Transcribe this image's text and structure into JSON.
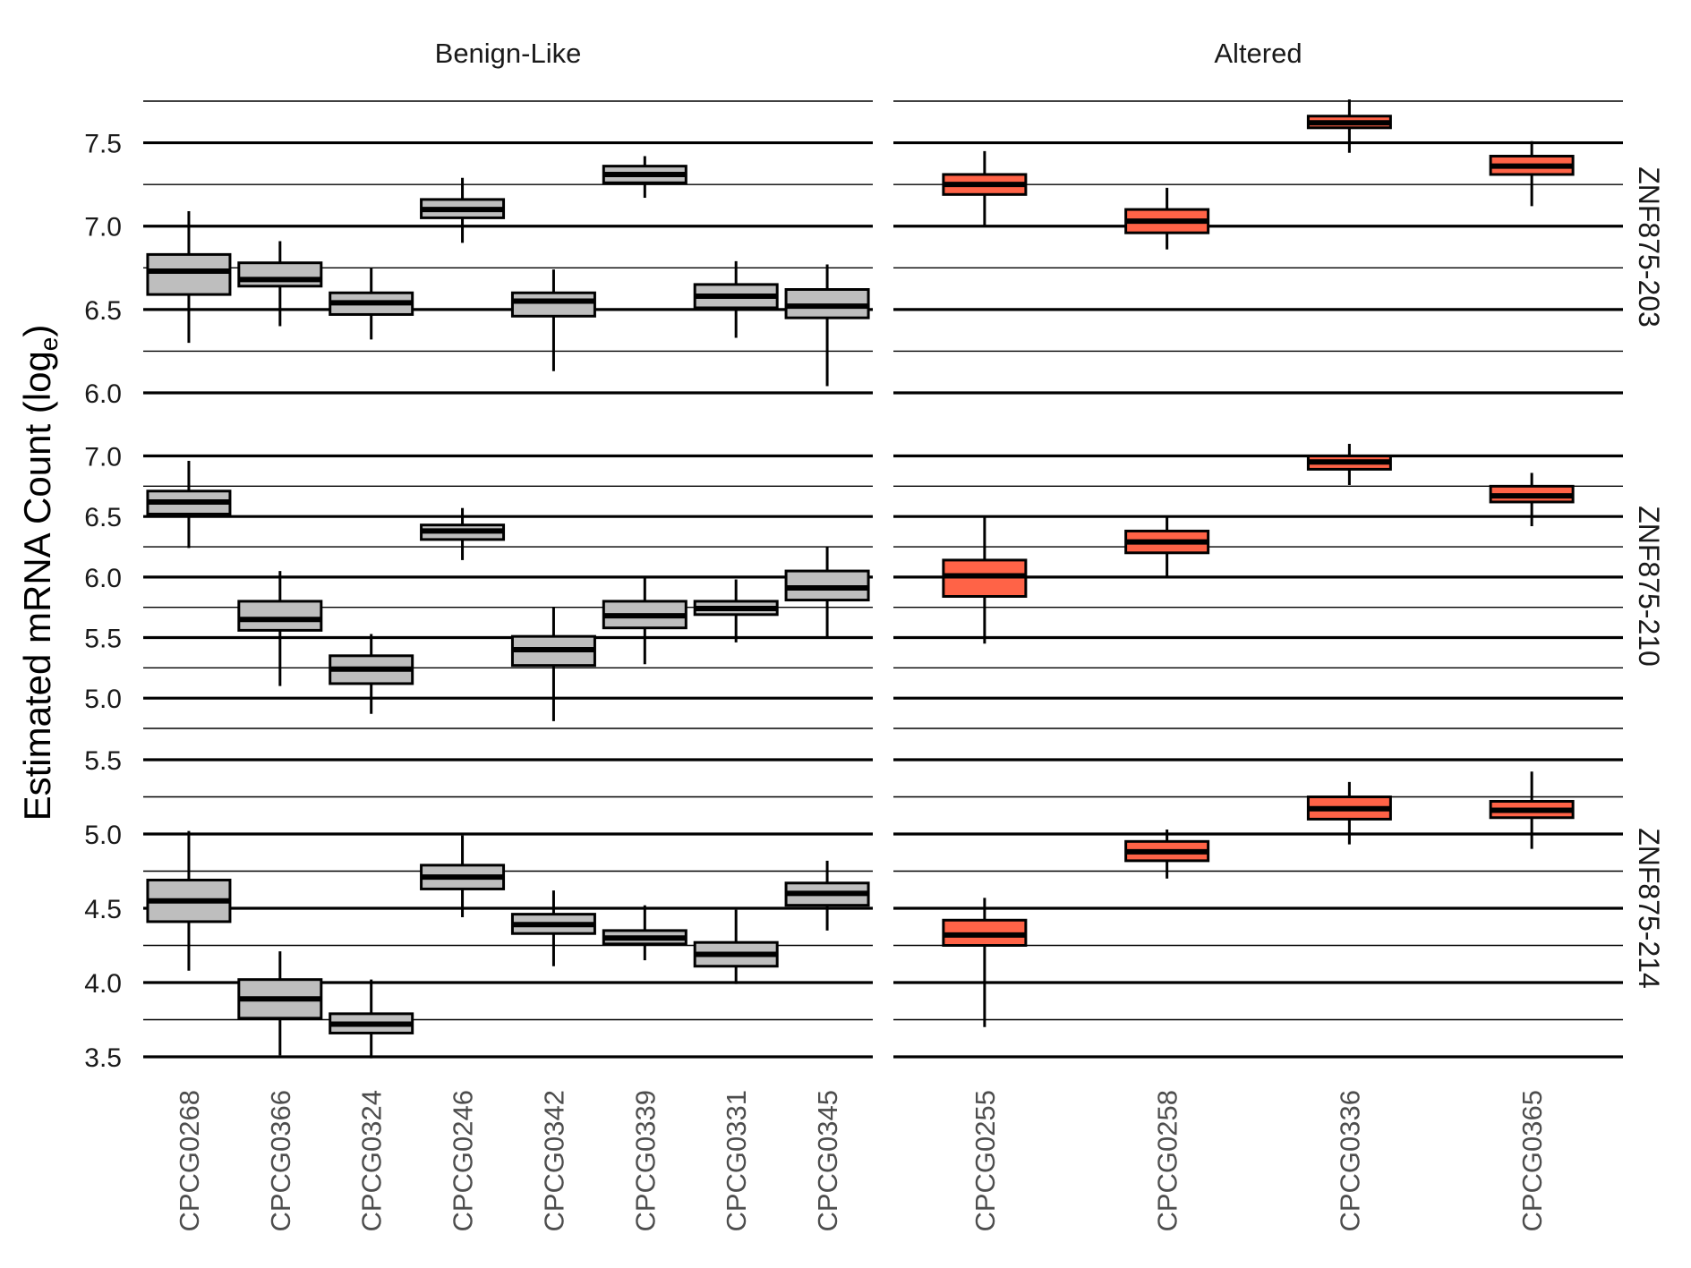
{
  "chart_data": {
    "type": "boxplot",
    "y_axis_label": "Estimated mRNA Count (log",
    "y_axis_label_subscript": "e",
    "y_axis_label_close": ")",
    "colors": {
      "Benign-Like": "#bebebe",
      "Altered": "#ff6347",
      "median": "#000000",
      "outline": "#000000"
    },
    "grid": {
      "major": true,
      "minor": true
    },
    "columns": [
      {
        "name": "Benign-Like",
        "categories": [
          "CPCG0268",
          "CPCG0366",
          "CPCG0324",
          "CPCG0246",
          "CPCG0342",
          "CPCG0339",
          "CPCG0331",
          "CPCG0345"
        ]
      },
      {
        "name": "Altered",
        "categories": [
          "CPCG0255",
          "CPCG0258",
          "CPCG0336",
          "CPCG0365"
        ]
      }
    ],
    "rows": [
      {
        "name": "ZNF875-203",
        "ylim": [
          6.0,
          7.75
        ],
        "yticks": [
          "6.0",
          "6.5",
          "7.0",
          "7.5"
        ],
        "boxes": {
          "Benign-Like": [
            {
              "whisker_low": 6.3,
              "q1": 6.59,
              "median": 6.73,
              "q3": 6.83,
              "whisker_high": 7.09
            },
            {
              "whisker_low": 6.4,
              "q1": 6.64,
              "median": 6.68,
              "q3": 6.78,
              "whisker_high": 6.91
            },
            {
              "whisker_low": 6.32,
              "q1": 6.47,
              "median": 6.54,
              "q3": 6.6,
              "whisker_high": 6.75
            },
            {
              "whisker_low": 6.9,
              "q1": 7.05,
              "median": 7.1,
              "q3": 7.16,
              "whisker_high": 7.29
            },
            {
              "whisker_low": 6.13,
              "q1": 6.46,
              "median": 6.55,
              "q3": 6.6,
              "whisker_high": 6.74
            },
            {
              "whisker_low": 7.17,
              "q1": 7.26,
              "median": 7.31,
              "q3": 7.36,
              "whisker_high": 7.42
            },
            {
              "whisker_low": 6.33,
              "q1": 6.51,
              "median": 6.58,
              "q3": 6.65,
              "whisker_high": 6.79
            },
            {
              "whisker_low": 6.04,
              "q1": 6.45,
              "median": 6.52,
              "q3": 6.62,
              "whisker_high": 6.77
            }
          ],
          "Altered": [
            {
              "whisker_low": 7.0,
              "q1": 7.19,
              "median": 7.25,
              "q3": 7.31,
              "whisker_high": 7.45
            },
            {
              "whisker_low": 6.86,
              "q1": 6.96,
              "median": 7.03,
              "q3": 7.1,
              "whisker_high": 7.23
            },
            {
              "whisker_low": 7.44,
              "q1": 7.59,
              "median": 7.62,
              "q3": 7.66,
              "whisker_high": 7.76
            },
            {
              "whisker_low": 7.12,
              "q1": 7.31,
              "median": 7.36,
              "q3": 7.42,
              "whisker_high": 7.51
            }
          ]
        }
      },
      {
        "name": "ZNF875-210",
        "ylim": [
          4.75,
          7.1
        ],
        "yticks": [
          "5.0",
          "5.5",
          "6.0",
          "6.5",
          "7.0"
        ],
        "boxes": {
          "Benign-Like": [
            {
              "whisker_low": 6.24,
              "q1": 6.52,
              "median": 6.62,
              "q3": 6.71,
              "whisker_high": 6.96
            },
            {
              "whisker_low": 5.1,
              "q1": 5.56,
              "median": 5.65,
              "q3": 5.8,
              "whisker_high": 6.05
            },
            {
              "whisker_low": 4.87,
              "q1": 5.12,
              "median": 5.24,
              "q3": 5.35,
              "whisker_high": 5.53
            },
            {
              "whisker_low": 6.14,
              "q1": 6.31,
              "median": 6.38,
              "q3": 6.43,
              "whisker_high": 6.57
            },
            {
              "whisker_low": 4.81,
              "q1": 5.27,
              "median": 5.4,
              "q3": 5.51,
              "whisker_high": 5.75
            },
            {
              "whisker_low": 5.28,
              "q1": 5.58,
              "median": 5.68,
              "q3": 5.8,
              "whisker_high": 6.01
            },
            {
              "whisker_low": 5.46,
              "q1": 5.69,
              "median": 5.74,
              "q3": 5.8,
              "whisker_high": 5.98
            },
            {
              "whisker_low": 5.5,
              "q1": 5.81,
              "median": 5.91,
              "q3": 6.05,
              "whisker_high": 6.25
            }
          ],
          "Altered": [
            {
              "whisker_low": 5.45,
              "q1": 5.84,
              "median": 6.01,
              "q3": 6.14,
              "whisker_high": 6.5
            },
            {
              "whisker_low": 6.01,
              "q1": 6.2,
              "median": 6.29,
              "q3": 6.38,
              "whisker_high": 6.5
            },
            {
              "whisker_low": 6.76,
              "q1": 6.89,
              "median": 6.95,
              "q3": 7.0,
              "whisker_high": 7.1
            },
            {
              "whisker_low": 6.42,
              "q1": 6.62,
              "median": 6.67,
              "q3": 6.75,
              "whisker_high": 6.86
            }
          ]
        }
      },
      {
        "name": "ZNF875-214",
        "ylim": [
          3.5,
          5.5
        ],
        "yticks": [
          "3.5",
          "4.0",
          "4.5",
          "5.0",
          "5.5"
        ],
        "boxes": {
          "Benign-Like": [
            {
              "whisker_low": 4.08,
              "q1": 4.41,
              "median": 4.55,
              "q3": 4.69,
              "whisker_high": 5.02
            },
            {
              "whisker_low": 3.51,
              "q1": 3.76,
              "median": 3.89,
              "q3": 4.02,
              "whisker_high": 4.21
            },
            {
              "whisker_low": 3.49,
              "q1": 3.66,
              "median": 3.72,
              "q3": 3.79,
              "whisker_high": 4.02
            },
            {
              "whisker_low": 4.44,
              "q1": 4.63,
              "median": 4.71,
              "q3": 4.79,
              "whisker_high": 4.99
            },
            {
              "whisker_low": 4.11,
              "q1": 4.33,
              "median": 4.39,
              "q3": 4.46,
              "whisker_high": 4.62
            },
            {
              "whisker_low": 4.15,
              "q1": 4.26,
              "median": 4.3,
              "q3": 4.35,
              "whisker_high": 4.52
            },
            {
              "whisker_low": 3.99,
              "q1": 4.11,
              "median": 4.19,
              "q3": 4.27,
              "whisker_high": 4.49
            },
            {
              "whisker_low": 4.35,
              "q1": 4.52,
              "median": 4.6,
              "q3": 4.67,
              "whisker_high": 4.82
            }
          ],
          "Altered": [
            {
              "whisker_low": 3.7,
              "q1": 4.25,
              "median": 4.32,
              "q3": 4.42,
              "whisker_high": 4.57
            },
            {
              "whisker_low": 4.7,
              "q1": 4.82,
              "median": 4.88,
              "q3": 4.95,
              "whisker_high": 5.03
            },
            {
              "whisker_low": 4.93,
              "q1": 5.1,
              "median": 5.17,
              "q3": 5.25,
              "whisker_high": 5.35
            },
            {
              "whisker_low": 4.9,
              "q1": 5.11,
              "median": 5.16,
              "q3": 5.22,
              "whisker_high": 5.42
            }
          ]
        }
      }
    ]
  }
}
